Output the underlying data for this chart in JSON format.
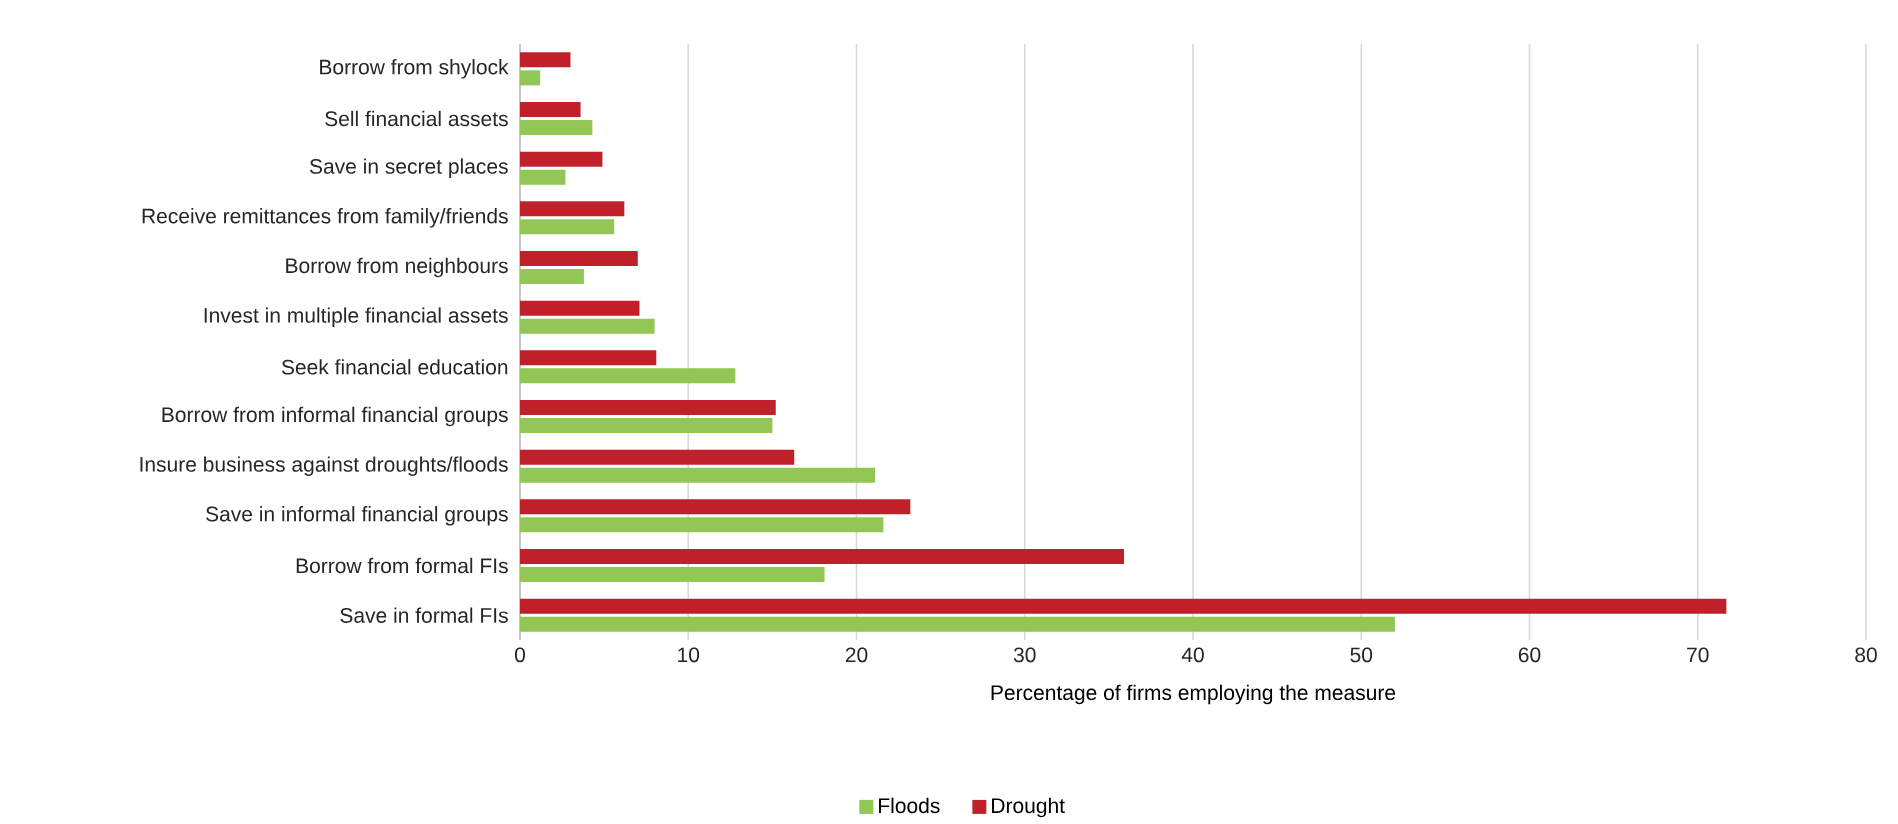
{
  "chart_data": {
    "type": "bar",
    "orientation": "horizontal",
    "xlabel": "Percentage of firms employing the measure",
    "categories": [
      "Borrow from shylock",
      "Sell financial assets",
      "Save in secret places",
      "Receive remittances from family/friends",
      "Borrow from neighbours",
      "Invest in multiple financial assets",
      "Seek financial education",
      "Borrow from informal financial groups",
      "Insure business against droughts/floods",
      "Save in informal financial groups",
      "Borrow from formal FIs",
      "Save in formal FIs"
    ],
    "series": [
      {
        "name": "Floods",
        "color": "#92c756",
        "values": [
          1.2,
          4.3,
          2.7,
          5.6,
          3.8,
          8.0,
          12.8,
          15.0,
          21.1,
          21.6,
          18.1,
          52.0
        ]
      },
      {
        "name": "Drought",
        "color": "#c0202a",
        "values": [
          3.0,
          3.6,
          4.9,
          6.2,
          7.0,
          7.1,
          8.1,
          15.2,
          16.3,
          23.2,
          35.9,
          71.7
        ]
      }
    ],
    "xlim": [
      0,
      80
    ],
    "xticks": [
      0,
      10,
      20,
      30,
      40,
      50,
      60,
      70,
      80
    ],
    "grid": "x",
    "legend": "bottom"
  }
}
